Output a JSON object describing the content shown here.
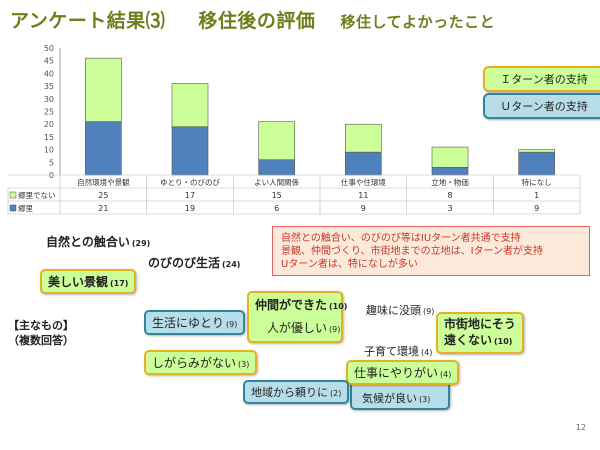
{
  "title": {
    "main": "アンケート結果⑶",
    "mid": "移住後の評価",
    "sub": "移住してよかったこと"
  },
  "legend": {
    "i_turn": "Ｉターン者の支持",
    "u_turn": "Ｕターン者の支持"
  },
  "chart_data": {
    "type": "bar",
    "stacked": true,
    "categories": [
      "自然環境や景観",
      "ゆとり・のびのび",
      "よい人間関係",
      "仕事や住環境",
      "立地・物価",
      "特になし"
    ],
    "series": [
      {
        "name": "郷里",
        "values": [
          21,
          19,
          6,
          9,
          3,
          9
        ],
        "color": "#4f81bd"
      },
      {
        "name": "郷里でない",
        "values": [
          25,
          17,
          15,
          11,
          8,
          1
        ],
        "color": "#ccff99"
      }
    ],
    "yticks": [
      0,
      5,
      10,
      15,
      20,
      25,
      30,
      35,
      40,
      45,
      50
    ],
    "ylim": [
      0,
      50
    ],
    "grid": false
  },
  "note": {
    "lines": [
      "自然との触合い、のびのび等はIUターン者共通で支持",
      "景観、仲間づくり、市街地までの立地は、Iターン者が支持",
      "Uターン者は、特になしが多い"
    ]
  },
  "side_note": {
    "line1": "【主なもの】",
    "line2": "（複数回答）"
  },
  "keywords": {
    "shizen": {
      "label": "自然との触合い",
      "count": "(29)"
    },
    "nobinobi": {
      "label": "のびのび生活",
      "count": "(24)"
    },
    "keikan": {
      "label": "美しい景観",
      "count": "(17)"
    },
    "seikatsu_yutori": {
      "label": "生活にゆとり",
      "count": "(9)"
    },
    "nakama": {
      "label": "仲間ができた",
      "count": "(10)"
    },
    "hitoyasashii": {
      "label": "人が優しい",
      "count": "(9)"
    },
    "shumi": {
      "label": "趣味に没頭",
      "count": "(9)"
    },
    "shigaichi": {
      "label1": "市街地にそう",
      "label2": "遠くない",
      "count": "(10)"
    },
    "kosodate": {
      "label": "子育て環境",
      "count": "(4)"
    },
    "shigarami": {
      "label": "しがらみがない",
      "count": "(3)"
    },
    "shigoto": {
      "label": "仕事にやりがい",
      "count": "(4)"
    },
    "chiiki": {
      "label": "地域から頼りに",
      "count": "(2)"
    },
    "kikou": {
      "label": "気候が良い",
      "count": "(3)"
    }
  },
  "page_number": "12"
}
